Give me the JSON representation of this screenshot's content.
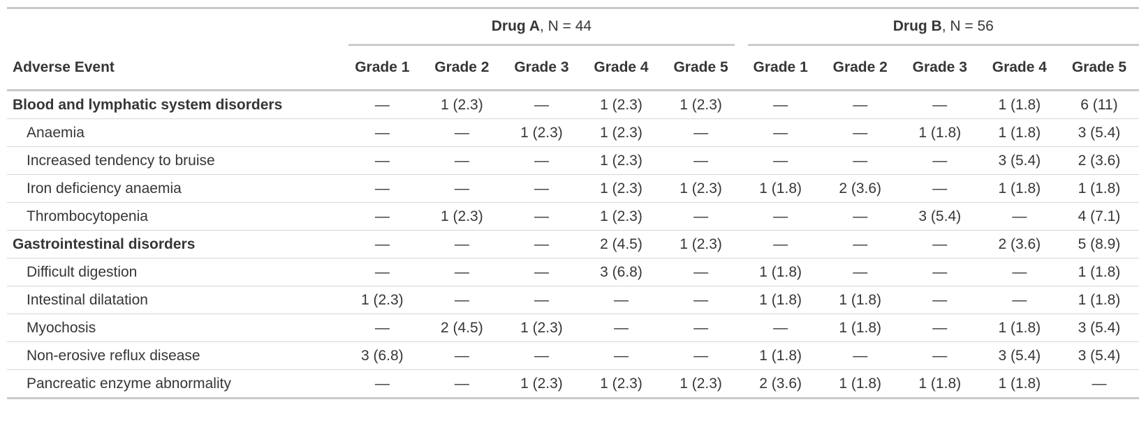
{
  "table": {
    "row_header": "Adverse Event",
    "grade_headers": [
      "Grade 1",
      "Grade 2",
      "Grade 3",
      "Grade 4",
      "Grade 5"
    ],
    "groups": [
      {
        "name": "Drug A",
        "n_label": ", N = 44"
      },
      {
        "name": "Drug B",
        "n_label": ", N = 56"
      }
    ],
    "rows": [
      {
        "label": "Blood and lymphatic system disorders",
        "bold": true,
        "drug_a": [
          "—",
          "1 (2.3)",
          "—",
          "1 (2.3)",
          "1 (2.3)"
        ],
        "drug_b": [
          "—",
          "—",
          "—",
          "1 (1.8)",
          "6 (11)"
        ]
      },
      {
        "label": "Anaemia",
        "bold": false,
        "drug_a": [
          "—",
          "—",
          "1 (2.3)",
          "1 (2.3)",
          "—"
        ],
        "drug_b": [
          "—",
          "—",
          "1 (1.8)",
          "1 (1.8)",
          "3 (5.4)"
        ]
      },
      {
        "label": "Increased tendency to bruise",
        "bold": false,
        "drug_a": [
          "—",
          "—",
          "—",
          "1 (2.3)",
          "—"
        ],
        "drug_b": [
          "—",
          "—",
          "—",
          "3 (5.4)",
          "2 (3.6)"
        ]
      },
      {
        "label": "Iron deficiency anaemia",
        "bold": false,
        "drug_a": [
          "—",
          "—",
          "—",
          "1 (2.3)",
          "1 (2.3)"
        ],
        "drug_b": [
          "1 (1.8)",
          "2 (3.6)",
          "—",
          "1 (1.8)",
          "1 (1.8)"
        ]
      },
      {
        "label": "Thrombocytopenia",
        "bold": false,
        "drug_a": [
          "—",
          "1 (2.3)",
          "—",
          "1 (2.3)",
          "—"
        ],
        "drug_b": [
          "—",
          "—",
          "3 (5.4)",
          "—",
          "4 (7.1)"
        ]
      },
      {
        "label": "Gastrointestinal disorders",
        "bold": true,
        "drug_a": [
          "—",
          "—",
          "—",
          "2 (4.5)",
          "1 (2.3)"
        ],
        "drug_b": [
          "—",
          "—",
          "—",
          "2 (3.6)",
          "5 (8.9)"
        ]
      },
      {
        "label": "Difficult digestion",
        "bold": false,
        "drug_a": [
          "—",
          "—",
          "—",
          "3 (6.8)",
          "—"
        ],
        "drug_b": [
          "1 (1.8)",
          "—",
          "—",
          "—",
          "1 (1.8)"
        ]
      },
      {
        "label": "Intestinal dilatation",
        "bold": false,
        "drug_a": [
          "1 (2.3)",
          "—",
          "—",
          "—",
          "—"
        ],
        "drug_b": [
          "1 (1.8)",
          "1 (1.8)",
          "—",
          "—",
          "1 (1.8)"
        ]
      },
      {
        "label": "Myochosis",
        "bold": false,
        "drug_a": [
          "—",
          "2 (4.5)",
          "1 (2.3)",
          "—",
          "—"
        ],
        "drug_b": [
          "—",
          "1 (1.8)",
          "—",
          "1 (1.8)",
          "3 (5.4)"
        ]
      },
      {
        "label": "Non-erosive reflux disease",
        "bold": false,
        "drug_a": [
          "3 (6.8)",
          "—",
          "—",
          "—",
          "—"
        ],
        "drug_b": [
          "1 (1.8)",
          "—",
          "—",
          "3 (5.4)",
          "3 (5.4)"
        ]
      },
      {
        "label": "Pancreatic enzyme abnormality",
        "bold": false,
        "drug_a": [
          "—",
          "—",
          "1 (2.3)",
          "1 (2.3)",
          "1 (2.3)"
        ],
        "drug_b": [
          "2 (3.6)",
          "1 (1.8)",
          "1 (1.8)",
          "1 (1.8)",
          "—"
        ]
      }
    ],
    "colors": {
      "text": "#363636",
      "border_heavy": "#c9c9c9",
      "border_light": "#d6d6d6"
    }
  }
}
